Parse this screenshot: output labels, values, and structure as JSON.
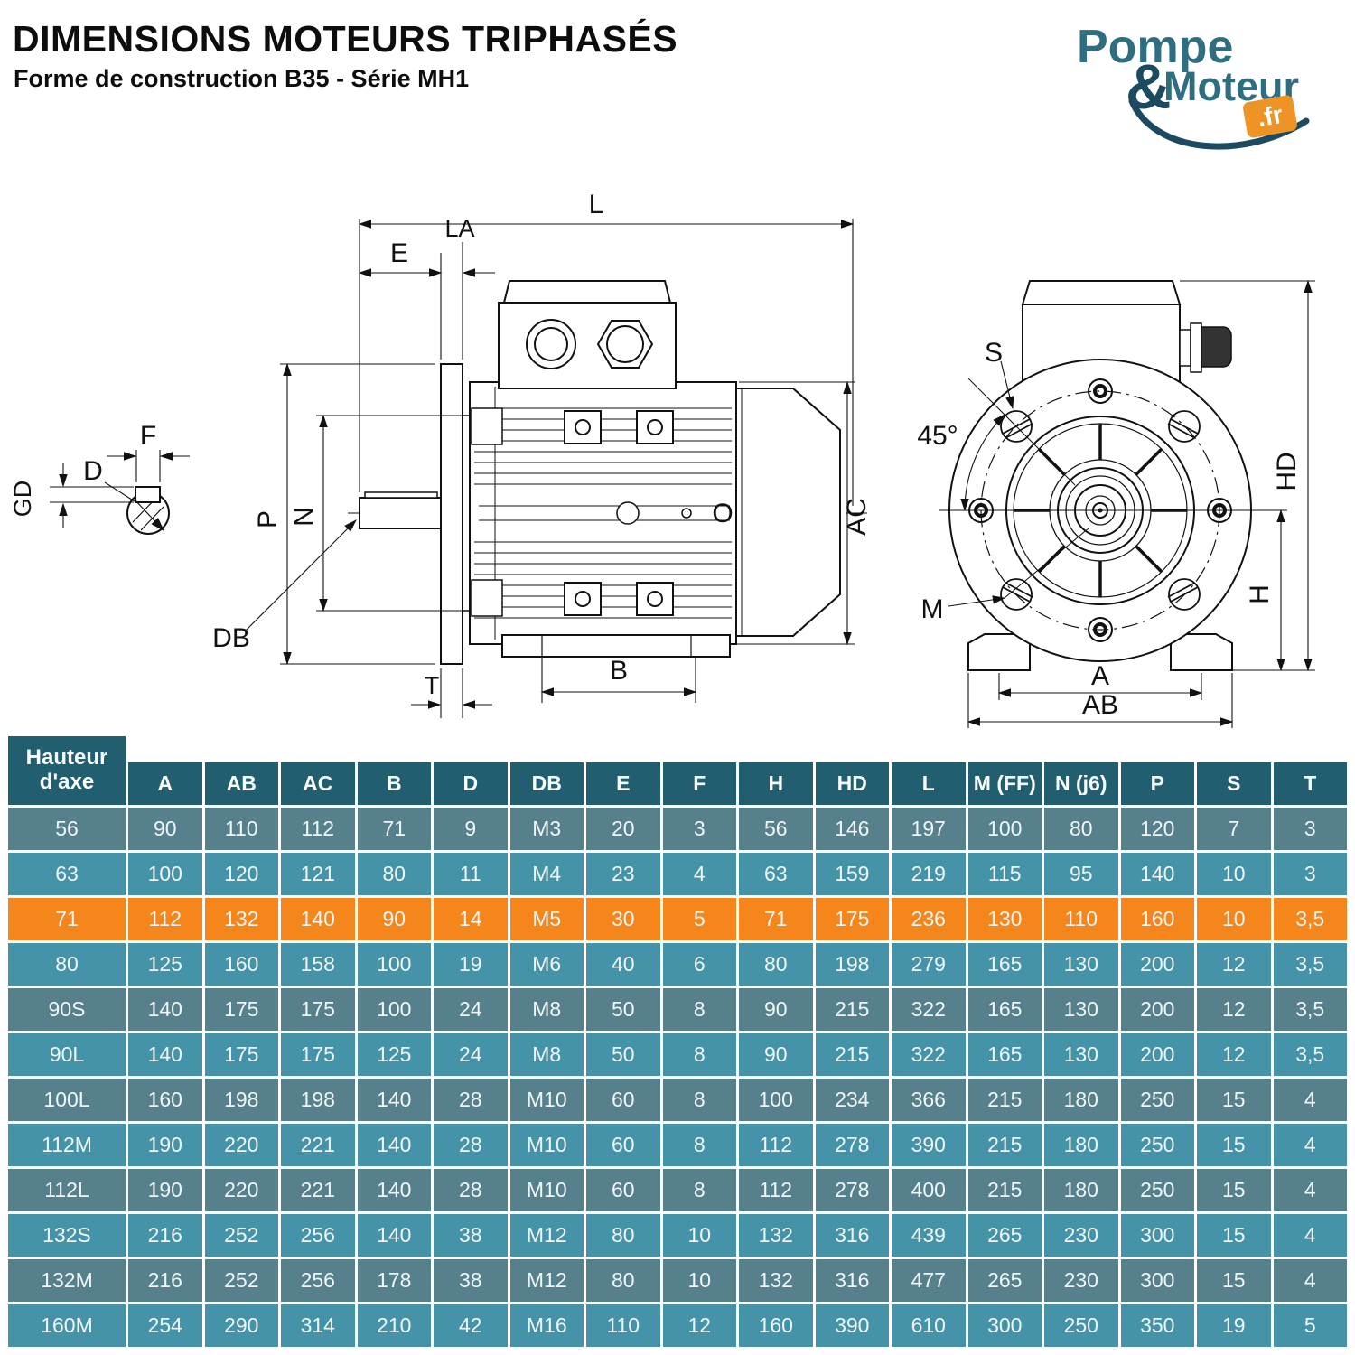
{
  "header": {
    "title": "DIMENSIONS MOTEURS TRIPHASÉS",
    "subtitle": "Forme de construction B35 - Série MH1"
  },
  "logo": {
    "part1": "Pompe",
    "amp": "&",
    "part2": "Moteur",
    "tld": ".fr",
    "teal": "#2E6E80",
    "dark": "#1B4A61",
    "orange": "#EE9325"
  },
  "colors": {
    "header_bg": "#215E70",
    "row_muted": "#56808B",
    "row_bright": "#4493A8",
    "row_highlight": "#F5861C",
    "cell_text": "#F0F6F7"
  },
  "diagram": {
    "labels": {
      "F": "F",
      "D": "D",
      "GD": "GD",
      "L": "L",
      "LA": "LA",
      "E": "E",
      "P": "P",
      "N": "N",
      "DB": "DB",
      "T": "T",
      "B": "B",
      "AC": "AC",
      "O": "O",
      "S": "S",
      "angle45": "45°",
      "M": "M",
      "HD": "HD",
      "H": "H",
      "A": "A",
      "AB": "AB"
    }
  },
  "table": {
    "axis_header": "Hauteur d'axe",
    "columns": [
      "A",
      "AB",
      "AC",
      "B",
      "D",
      "DB",
      "E",
      "F",
      "H",
      "HD",
      "L",
      "M (FF)",
      "N (j6)",
      "P",
      "S",
      "T"
    ],
    "rows": [
      {
        "axis": "56",
        "highlight": false,
        "values": [
          "90",
          "110",
          "112",
          "71",
          "9",
          "M3",
          "20",
          "3",
          "56",
          "146",
          "197",
          "100",
          "80",
          "120",
          "7",
          "3"
        ]
      },
      {
        "axis": "63",
        "highlight": false,
        "values": [
          "100",
          "120",
          "121",
          "80",
          "11",
          "M4",
          "23",
          "4",
          "63",
          "159",
          "219",
          "115",
          "95",
          "140",
          "10",
          "3"
        ]
      },
      {
        "axis": "71",
        "highlight": true,
        "values": [
          "112",
          "132",
          "140",
          "90",
          "14",
          "M5",
          "30",
          "5",
          "71",
          "175",
          "236",
          "130",
          "110",
          "160",
          "10",
          "3,5"
        ]
      },
      {
        "axis": "80",
        "highlight": false,
        "values": [
          "125",
          "160",
          "158",
          "100",
          "19",
          "M6",
          "40",
          "6",
          "80",
          "198",
          "279",
          "165",
          "130",
          "200",
          "12",
          "3,5"
        ]
      },
      {
        "axis": "90S",
        "highlight": false,
        "values": [
          "140",
          "175",
          "175",
          "100",
          "24",
          "M8",
          "50",
          "8",
          "90",
          "215",
          "322",
          "165",
          "130",
          "200",
          "12",
          "3,5"
        ]
      },
      {
        "axis": "90L",
        "highlight": false,
        "values": [
          "140",
          "175",
          "175",
          "125",
          "24",
          "M8",
          "50",
          "8",
          "90",
          "215",
          "322",
          "165",
          "130",
          "200",
          "12",
          "3,5"
        ]
      },
      {
        "axis": "100L",
        "highlight": false,
        "values": [
          "160",
          "198",
          "198",
          "140",
          "28",
          "M10",
          "60",
          "8",
          "100",
          "234",
          "366",
          "215",
          "180",
          "250",
          "15",
          "4"
        ]
      },
      {
        "axis": "112M",
        "highlight": false,
        "values": [
          "190",
          "220",
          "221",
          "140",
          "28",
          "M10",
          "60",
          "8",
          "112",
          "278",
          "390",
          "215",
          "180",
          "250",
          "15",
          "4"
        ]
      },
      {
        "axis": "112L",
        "highlight": false,
        "values": [
          "190",
          "220",
          "221",
          "140",
          "28",
          "M10",
          "60",
          "8",
          "112",
          "278",
          "400",
          "215",
          "180",
          "250",
          "15",
          "4"
        ]
      },
      {
        "axis": "132S",
        "highlight": false,
        "values": [
          "216",
          "252",
          "256",
          "140",
          "38",
          "M12",
          "80",
          "10",
          "132",
          "316",
          "439",
          "265",
          "230",
          "300",
          "15",
          "4"
        ]
      },
      {
        "axis": "132M",
        "highlight": false,
        "values": [
          "216",
          "252",
          "256",
          "178",
          "38",
          "M12",
          "80",
          "10",
          "132",
          "316",
          "477",
          "265",
          "230",
          "300",
          "15",
          "4"
        ]
      },
      {
        "axis": "160M",
        "highlight": false,
        "values": [
          "254",
          "290",
          "314",
          "210",
          "42",
          "M16",
          "110",
          "12",
          "160",
          "390",
          "610",
          "300",
          "250",
          "350",
          "19",
          "5"
        ]
      }
    ]
  }
}
